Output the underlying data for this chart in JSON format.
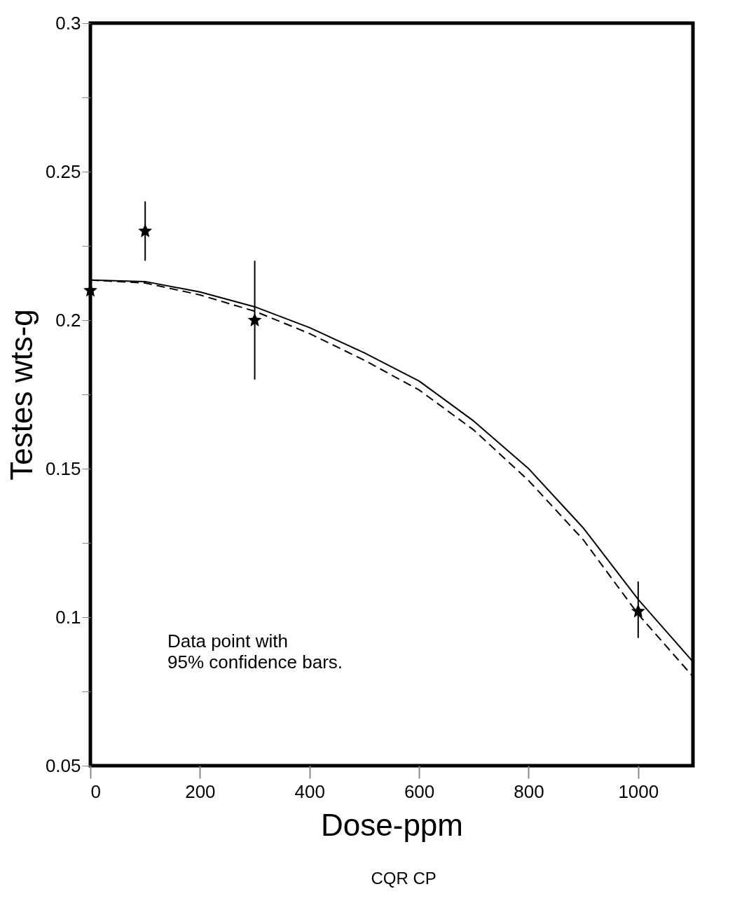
{
  "chart_data": {
    "type": "scatter",
    "xlabel": "Dose-ppm",
    "ylabel": "Testes wts-g",
    "xlim": [
      0,
      1100
    ],
    "ylim": [
      0.05,
      0.3
    ],
    "xticks": [
      0,
      200,
      400,
      600,
      800,
      1000
    ],
    "yticks": [
      0.05,
      {
        "value": 0.075,
        "label": null
      },
      0.1,
      {
        "value": 0.125,
        "label": null
      },
      0.15,
      {
        "value": 0.175,
        "label": null
      },
      0.2,
      {
        "value": 0.225,
        "label": null
      },
      0.25,
      {
        "value": 0.275,
        "label": null
      },
      0.3
    ],
    "grid": false,
    "series": [
      {
        "type": "scatter",
        "color": "#000000",
        "marker": "star",
        "x": [
          0,
          100,
          300,
          1000
        ],
        "values": [
          0.21,
          0.23,
          0.2,
          0.102
        ],
        "errors": [
          null,
          [
            0.22,
            0.24
          ],
          [
            0.18,
            0.22
          ],
          [
            0.093,
            0.112
          ]
        ]
      },
      {
        "type": "line",
        "color": "#000000",
        "line_style": "solid",
        "x": [
          0,
          100,
          200,
          300,
          400,
          500,
          600,
          700,
          800,
          900,
          1000,
          1100
        ],
        "values": [
          0.2135,
          0.213,
          0.2095,
          0.2045,
          0.1975,
          0.189,
          0.1795,
          0.166,
          0.15,
          0.13,
          0.106,
          0.085
        ]
      },
      {
        "type": "line",
        "color": "#000000",
        "line_style": "dashed",
        "x": [
          0,
          100,
          200,
          300,
          400,
          500,
          600,
          700,
          800,
          900,
          1000,
          1100
        ],
        "values": [
          0.2135,
          0.2125,
          0.2085,
          0.203,
          0.1955,
          0.1865,
          0.1765,
          0.163,
          0.146,
          0.126,
          0.101,
          0.08
        ]
      }
    ],
    "annotations": [
      "Data point with\n95% confidence bars.",
      "CQR      CP"
    ]
  }
}
